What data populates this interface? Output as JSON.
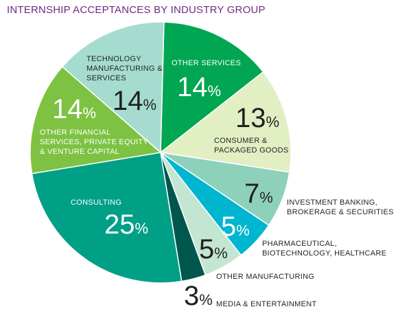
{
  "chart_data": {
    "type": "pie",
    "title": "INTERNSHIP ACCEPTANCES BY INDUSTRY GROUP",
    "percent_sign": "%",
    "slices": [
      {
        "label_lines": [
          "OTHER SERVICES"
        ],
        "value": 14,
        "value_text": "14",
        "color": "#00a651"
      },
      {
        "label_lines": [
          "CONSUMER &",
          "PACKAGED GOODS"
        ],
        "value": 13,
        "value_text": "13",
        "color": "#e1efc3"
      },
      {
        "label_lines": [
          "INVESTMENT BANKING,",
          "BROKERAGE & SECURITIES"
        ],
        "value": 7,
        "value_text": "7",
        "color": "#8dd1bb"
      },
      {
        "label_lines": [
          "PHARMACEUTICAL,",
          "BIOTECHNOLOGY, HEALTHCARE"
        ],
        "value": 5,
        "value_text": "5",
        "color": "#00b5cf"
      },
      {
        "label_lines": [
          "OTHER MANUFACTURING"
        ],
        "value": 5,
        "value_text": "5",
        "color": "#c3e6d3"
      },
      {
        "label_lines": [
          "MEDIA & ENTERTAINMENT"
        ],
        "value": 3,
        "value_text": "3",
        "color": "#00574e"
      },
      {
        "label_lines": [
          "CONSULTING"
        ],
        "value": 25,
        "value_text": "25",
        "color": "#00a087"
      },
      {
        "label_lines": [
          "OTHER FINANCIAL",
          "SERVICES, PRIVATE EQUITY",
          "& VENTURE CAPITAL"
        ],
        "value": 14,
        "value_text": "14",
        "color": "#7dc242"
      },
      {
        "label_lines": [
          "TECHNOLOGY",
          "MANUFACTURING &",
          "SERVICES"
        ],
        "value": 14,
        "value_text": "14",
        "color": "#a5dccf"
      }
    ]
  }
}
